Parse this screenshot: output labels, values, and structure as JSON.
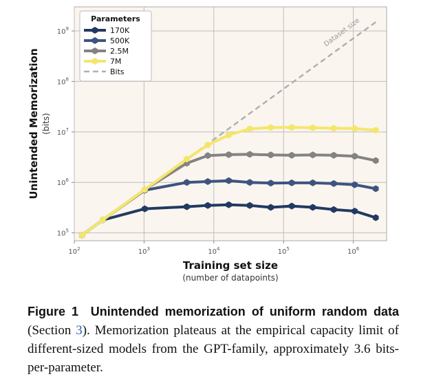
{
  "chart_data": {
    "type": "line",
    "x_scale": "log",
    "y_scale": "log",
    "xlim": [
      100,
      3000000
    ],
    "ylim": [
      70000,
      3000000000
    ],
    "xlabel": "Training set size",
    "xlabel_sub": "(number of datapoints)",
    "ylabel": "Unintended Memorization",
    "ylabel_sub": "(bits)",
    "x_ticks": [
      {
        "base": "10",
        "exp": "2",
        "value": 100
      },
      {
        "base": "10",
        "exp": "3",
        "value": 1000
      },
      {
        "base": "10",
        "exp": "4",
        "value": 10000
      },
      {
        "base": "10",
        "exp": "5",
        "value": 100000
      },
      {
        "base": "10",
        "exp": "6",
        "value": 1000000
      }
    ],
    "y_ticks": [
      {
        "base": "10",
        "exp": "5",
        "value": 100000
      },
      {
        "base": "10",
        "exp": "6",
        "value": 1000000
      },
      {
        "base": "10",
        "exp": "7",
        "value": 10000000
      },
      {
        "base": "10",
        "exp": "8",
        "value": 100000000
      },
      {
        "base": "10",
        "exp": "9",
        "value": 1000000000
      }
    ],
    "grid": true,
    "legend_title": "Parameters",
    "legend_position": "top-left",
    "background": "#fbf5ef",
    "series": [
      {
        "name": "170K",
        "color": "#213a62",
        "x": [
          128,
          256,
          1024,
          4096,
          8192,
          16384,
          32768,
          65536,
          131072,
          262144,
          524288,
          1048576,
          2097152
        ],
        "y": [
          90000,
          180000,
          300000,
          330000,
          350000,
          360000,
          350000,
          320000,
          340000,
          320000,
          290000,
          270000,
          200000
        ]
      },
      {
        "name": "500K",
        "color": "#3e5480",
        "x": [
          128,
          256,
          1024,
          4096,
          8192,
          16384,
          32768,
          65536,
          131072,
          262144,
          524288,
          1048576,
          2097152
        ],
        "y": [
          90000,
          180000,
          700000,
          1000000,
          1040000,
          1080000,
          1000000,
          970000,
          980000,
          980000,
          950000,
          900000,
          750000
        ]
      },
      {
        "name": "2.5M",
        "color": "#838383",
        "x": [
          128,
          256,
          1024,
          4096,
          8192,
          16384,
          32768,
          65536,
          131072,
          262144,
          524288,
          1048576,
          2097152
        ],
        "y": [
          90000,
          180000,
          720000,
          2400000,
          3400000,
          3550000,
          3600000,
          3500000,
          3450000,
          3500000,
          3450000,
          3300000,
          2700000
        ]
      },
      {
        "name": "7M",
        "color": "#f4e66c",
        "x": [
          128,
          256,
          1024,
          4096,
          8192,
          16384,
          32768,
          65536,
          131072,
          262144,
          524288,
          1048576,
          2097152
        ],
        "y": [
          90000,
          180000,
          720000,
          2900000,
          5500000,
          8700000,
          11500000,
          12200000,
          12300000,
          12100000,
          11800000,
          11700000,
          10800000
        ]
      }
    ],
    "reference_line": {
      "name": "Bits",
      "color": "#b0b0b0",
      "x": [
        128,
        2097152
      ],
      "y": [
        90000,
        1500000000
      ],
      "label": "Dataset size"
    }
  },
  "caption": {
    "label": "Figure 1",
    "title": "Unintended memorization of uniform random data",
    "section_open": "(Section ",
    "section_ref": "3",
    "section_close": ").",
    "body": " Memorization plateaus at the empirical capacity limit of different-sized models from the GPT-family, approximately 3.6 bits-per-parameter."
  }
}
